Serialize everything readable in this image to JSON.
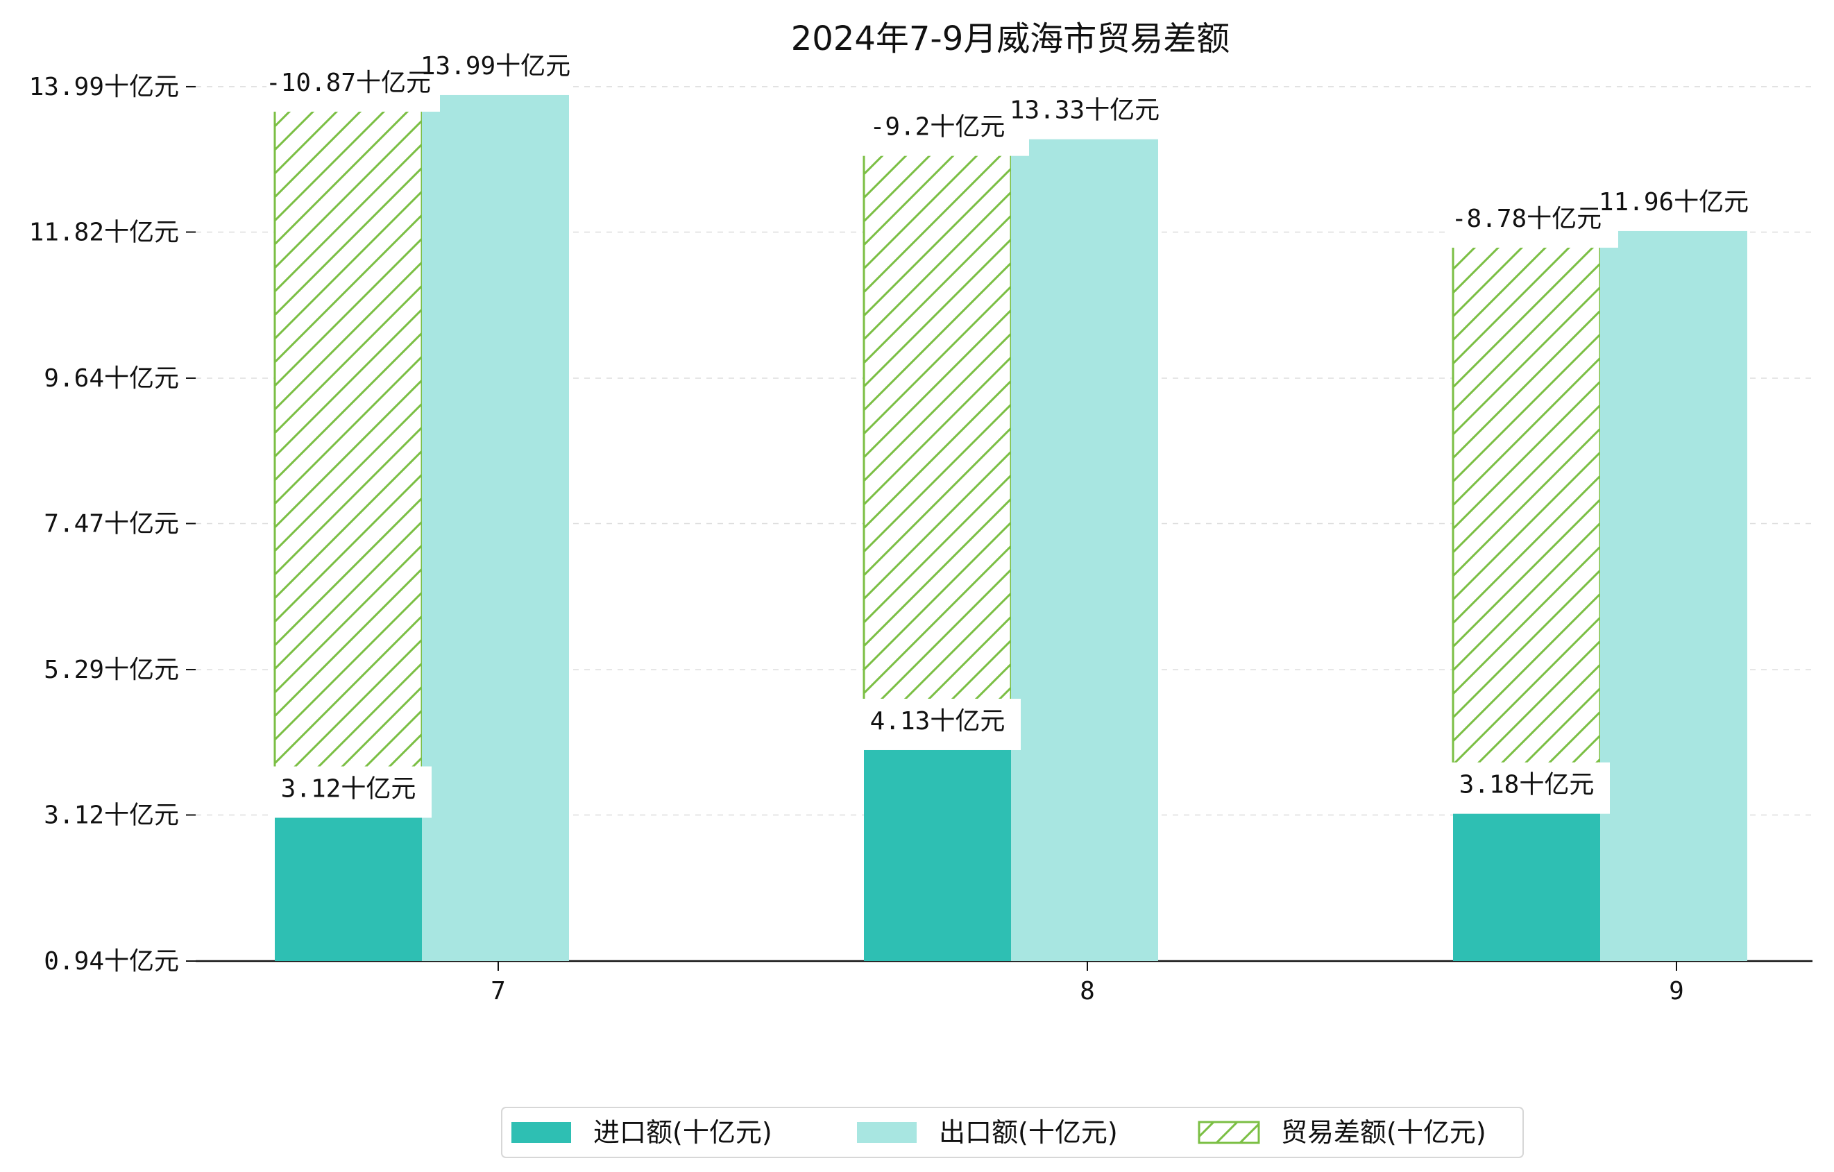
{
  "chart_data": {
    "type": "bar",
    "title": "2024年7-9月威海市贸易差额",
    "categories": [
      "7",
      "8",
      "9"
    ],
    "series": [
      {
        "name": "进口额(十亿元)",
        "values": [
          3.12,
          4.13,
          3.18
        ],
        "color": "#2ebfb3",
        "labels": [
          "3.12十亿元",
          "4.13十亿元",
          "3.18十亿元"
        ]
      },
      {
        "name": "出口额(十亿元)",
        "values": [
          13.99,
          13.33,
          11.96
        ],
        "color": "#a8e6e1",
        "labels": [
          "13.99十亿元",
          "13.33十亿元",
          "11.96十亿元"
        ]
      },
      {
        "name": "贸易差额(十亿元)",
        "values": [
          -10.87,
          -9.2,
          -8.78
        ],
        "color": "#7bbf44",
        "pattern": "diagonal-hatch",
        "labels": [
          "-10.87十亿元",
          "-9.2十亿元",
          "-8.78十亿元"
        ]
      }
    ],
    "yticks": [
      "0.94十亿元",
      "3.12十亿元",
      "5.29十亿元",
      "7.47十亿元",
      "9.64十亿元",
      "11.82十亿元",
      "13.99十亿元"
    ],
    "ytick_values": [
      0.94,
      3.12,
      5.29,
      7.47,
      9.64,
      11.82,
      13.99
    ],
    "ylim": [
      0.94,
      14.3
    ],
    "grid": "horizontal dashed",
    "legend_position": "bottom-center"
  }
}
